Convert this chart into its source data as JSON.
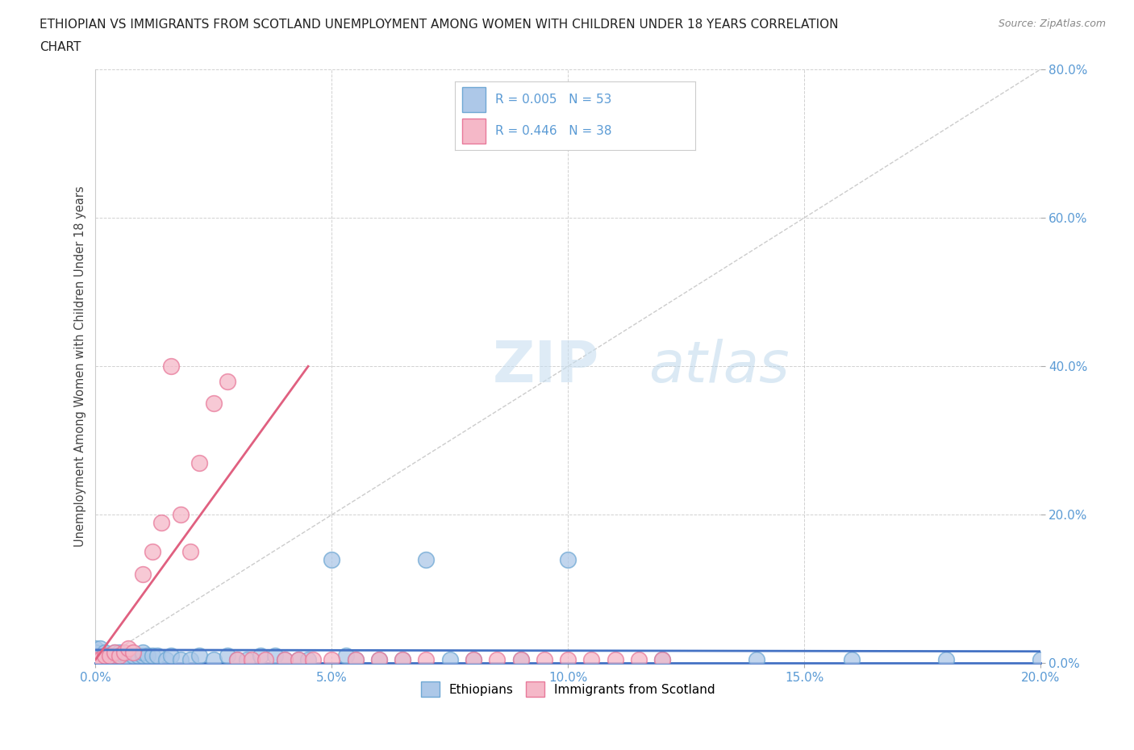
{
  "title_line1": "ETHIOPIAN VS IMMIGRANTS FROM SCOTLAND UNEMPLOYMENT AMONG WOMEN WITH CHILDREN UNDER 18 YEARS CORRELATION",
  "title_line2": "CHART",
  "source": "Source: ZipAtlas.com",
  "ylabel": "Unemployment Among Women with Children Under 18 years",
  "xlim": [
    0.0,
    0.2
  ],
  "ylim": [
    0.0,
    0.8
  ],
  "xticks": [
    0.0,
    0.05,
    0.1,
    0.15,
    0.2
  ],
  "yticks": [
    0.0,
    0.2,
    0.4,
    0.6,
    0.8
  ],
  "xticklabels": [
    "0.0%",
    "5.0%",
    "10.0%",
    "15.0%",
    "20.0%"
  ],
  "yticklabels": [
    "0.0%",
    "20.0%",
    "40.0%",
    "60.0%",
    "80.0%"
  ],
  "color_ethiopian": "#adc8e8",
  "color_scottish": "#f5b8c8",
  "edge_ethiopian": "#6fa8d4",
  "edge_scottish": "#e8799a",
  "regression_color_ethiopian": "#4472c4",
  "regression_color_scottish": "#e06080",
  "diagonal_color": "#cccccc",
  "watermark_zip": "ZIP",
  "watermark_atlas": "atlas",
  "background_color": "#ffffff",
  "tick_color": "#5b9bd5",
  "ethiopians_x": [
    0.0,
    0.0,
    0.0,
    0.0,
    0.0,
    0.001,
    0.001,
    0.002,
    0.002,
    0.003,
    0.003,
    0.004,
    0.004,
    0.005,
    0.005,
    0.006,
    0.007,
    0.008,
    0.009,
    0.01,
    0.01,
    0.011,
    0.012,
    0.013,
    0.015,
    0.016,
    0.018,
    0.02,
    0.022,
    0.025,
    0.028,
    0.03,
    0.032,
    0.035,
    0.038,
    0.04,
    0.043,
    0.045,
    0.05,
    0.053,
    0.055,
    0.06,
    0.065,
    0.07,
    0.075,
    0.08,
    0.09,
    0.1,
    0.12,
    0.14,
    0.16,
    0.18,
    0.2
  ],
  "ethiopians_y": [
    0.01,
    0.02,
    0.01,
    0.015,
    0.005,
    0.01,
    0.02,
    0.01,
    0.015,
    0.005,
    0.01,
    0.015,
    0.005,
    0.01,
    0.015,
    0.01,
    0.005,
    0.01,
    0.01,
    0.01,
    0.015,
    0.01,
    0.01,
    0.01,
    0.005,
    0.01,
    0.005,
    0.005,
    0.01,
    0.005,
    0.01,
    0.005,
    0.005,
    0.01,
    0.01,
    0.005,
    0.005,
    0.005,
    0.14,
    0.01,
    0.005,
    0.005,
    0.005,
    0.14,
    0.005,
    0.005,
    0.005,
    0.14,
    0.005,
    0.005,
    0.005,
    0.005,
    0.005
  ],
  "scottish_x": [
    0.0,
    0.001,
    0.002,
    0.003,
    0.004,
    0.005,
    0.006,
    0.007,
    0.008,
    0.01,
    0.012,
    0.014,
    0.016,
    0.018,
    0.02,
    0.022,
    0.025,
    0.028,
    0.03,
    0.033,
    0.036,
    0.04,
    0.043,
    0.046,
    0.05,
    0.055,
    0.06,
    0.065,
    0.07,
    0.08,
    0.085,
    0.09,
    0.095,
    0.1,
    0.105,
    0.11,
    0.115,
    0.12
  ],
  "scottish_y": [
    0.005,
    0.005,
    0.01,
    0.01,
    0.015,
    0.01,
    0.015,
    0.02,
    0.015,
    0.12,
    0.15,
    0.19,
    0.4,
    0.2,
    0.15,
    0.27,
    0.35,
    0.38,
    0.005,
    0.005,
    0.005,
    0.005,
    0.005,
    0.005,
    0.005,
    0.005,
    0.005,
    0.005,
    0.005,
    0.005,
    0.005,
    0.005,
    0.005,
    0.005,
    0.005,
    0.005,
    0.005,
    0.005
  ]
}
